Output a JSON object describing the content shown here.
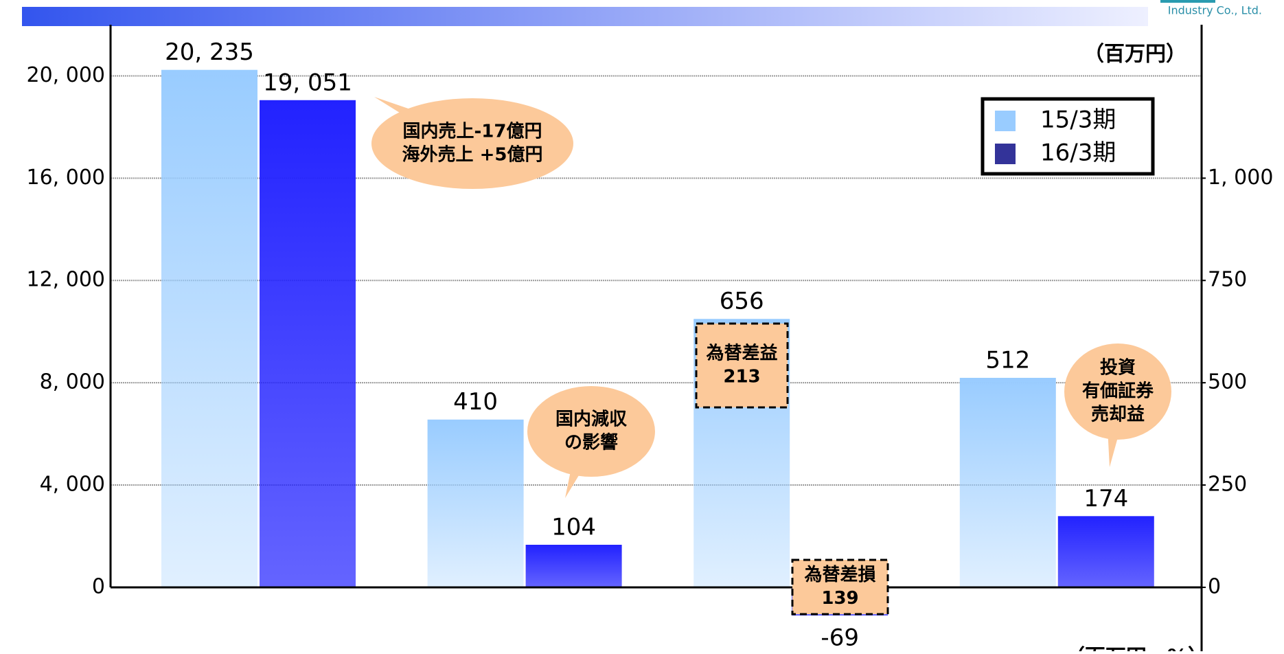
{
  "header": {
    "company": "Industry Co., Ltd."
  },
  "chart_data": {
    "type": "bar",
    "unit_label": "（百万円）",
    "footer_unit": "（百万円、%）",
    "categories": [
      null,
      null,
      null,
      null
    ],
    "axis_by_category": [
      "y",
      "y2",
      "y2",
      "y2"
    ],
    "series": [
      {
        "name": "15/3期",
        "color": "#99ccff",
        "values": [
          20235,
          410,
          656,
          512
        ],
        "value_labels": [
          "20, 235",
          "410",
          "656",
          "512"
        ]
      },
      {
        "name": "16/3期",
        "color": "#2222ff",
        "values": [
          19051,
          104,
          -69,
          174
        ],
        "value_labels": [
          "19, 051",
          "104",
          "-69",
          "174"
        ]
      }
    ],
    "ylim": [
      -2500,
      22000
    ],
    "yticks": [
      0,
      {
        "value": 4000,
        "label": "4, 000"
      },
      {
        "value": 8000,
        "label": "8, 000"
      },
      {
        "value": 12000,
        "label": "12, 000"
      },
      {
        "value": 16000,
        "label": "16, 000"
      },
      {
        "value": 20000,
        "label": "20, 000"
      }
    ],
    "y2lim": [
      -156.25,
      1375
    ],
    "y2ticks": [
      0,
      250,
      500,
      750,
      {
        "value": 1000,
        "label": "1, 000"
      }
    ],
    "grid": true,
    "legend": "top-right",
    "annotations": [
      {
        "lines": [
          "国内売上-17億円",
          "海外売上  +5億円"
        ]
      },
      {
        "lines": [
          "国内減収",
          "の影響"
        ]
      },
      {
        "lines": [
          "為替差益",
          "213"
        ]
      },
      {
        "lines": [
          "為替差損",
          "139"
        ]
      },
      {
        "lines": [
          "投資",
          "有価証券",
          "売却益"
        ]
      }
    ]
  }
}
